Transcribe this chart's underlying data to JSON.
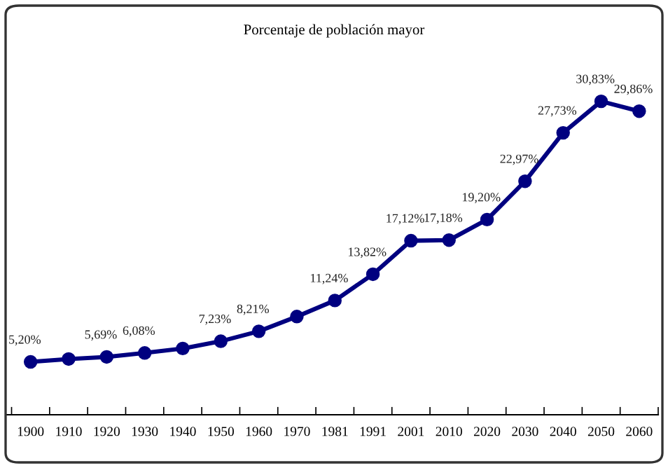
{
  "chart_data": {
    "type": "line",
    "title": "Porcentaje de población mayor",
    "categories": [
      "1900",
      "1910",
      "1920",
      "1930",
      "1940",
      "1950",
      "1960",
      "1970",
      "1981",
      "1991",
      "2001",
      "2010",
      "2020",
      "2030",
      "2040",
      "2050",
      "2060"
    ],
    "series": [
      {
        "color": "#000080",
        "values": [
          5.2,
          5.48,
          5.69,
          6.08,
          6.52,
          7.23,
          8.21,
          9.66,
          11.24,
          13.82,
          17.12,
          17.18,
          19.2,
          22.97,
          27.73,
          30.83,
          29.86
        ],
        "value_labels": [
          "5,20%",
          null,
          "5,69%",
          "6,08%",
          null,
          "7,23%",
          "8,21%",
          null,
          "11,24%",
          "13,82%",
          "17,12%",
          "17,18%",
          "19,20%",
          "22,97%",
          "27,73%",
          "30,83%",
          "29,86%"
        ]
      }
    ],
    "marker": "circle",
    "line_style": "solid",
    "grid": false
  }
}
